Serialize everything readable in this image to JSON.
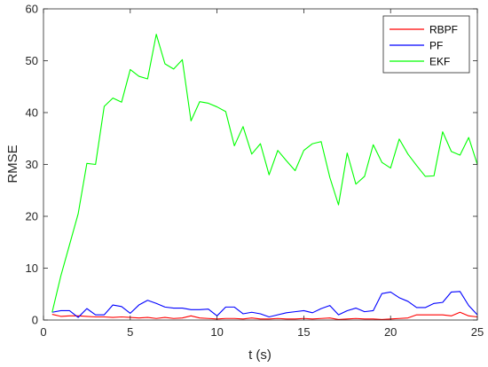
{
  "chart_data": {
    "type": "line",
    "xlabel": "t (s)",
    "ylabel": "RMSE",
    "xlim": [
      0,
      25
    ],
    "ylim": [
      0,
      60
    ],
    "xticks": [
      0,
      5,
      10,
      15,
      20,
      25
    ],
    "yticks": [
      0,
      10,
      20,
      30,
      40,
      50,
      60
    ],
    "grid": false,
    "legend_position": "top-right",
    "x": [
      0.5,
      1,
      1.5,
      2,
      2.5,
      3,
      3.5,
      4,
      4.5,
      5,
      5.5,
      6,
      6.5,
      7,
      7.5,
      8,
      8.5,
      9,
      9.5,
      10,
      10.5,
      11,
      11.5,
      12,
      12.5,
      13,
      13.5,
      14,
      14.5,
      15,
      15.5,
      16,
      16.5,
      17,
      17.5,
      18,
      18.5,
      19,
      19.5,
      20,
      20.5,
      21,
      21.5,
      22,
      22.5,
      23,
      23.5,
      24,
      24.5,
      25
    ],
    "series": [
      {
        "name": "RBPF",
        "color": "#ff0000",
        "values": [
          1.1,
          0.7,
          0.8,
          0.8,
          0.7,
          0.6,
          0.6,
          0.5,
          0.6,
          0.5,
          0.4,
          0.5,
          0.3,
          0.5,
          0.3,
          0.4,
          0.8,
          0.4,
          0.3,
          0.2,
          0.3,
          0.3,
          0.2,
          0.4,
          0.2,
          0.2,
          0.3,
          0.2,
          0.2,
          0.3,
          0.2,
          0.3,
          0.4,
          0.1,
          0.2,
          0.3,
          0.2,
          0.2,
          0.1,
          0.2,
          0.3,
          0.4,
          1.0,
          1.0,
          1.0,
          1.0,
          0.8,
          1.5,
          0.8,
          0.6
        ]
      },
      {
        "name": "PF",
        "color": "#0000ff",
        "values": [
          1.5,
          1.8,
          1.8,
          0.5,
          2.2,
          1.0,
          1.0,
          2.9,
          2.6,
          1.3,
          2.9,
          3.8,
          3.2,
          2.5,
          2.3,
          2.3,
          2.0,
          2.0,
          2.1,
          0.8,
          2.5,
          2.5,
          1.2,
          1.5,
          1.2,
          0.6,
          1.0,
          1.4,
          1.6,
          1.8,
          1.4,
          2.2,
          2.8,
          1.0,
          1.8,
          2.3,
          1.6,
          1.8,
          5.1,
          5.4,
          4.3,
          3.6,
          2.4,
          2.4,
          3.2,
          3.4,
          5.4,
          5.5,
          2.8,
          1.0
        ]
      },
      {
        "name": "EKF",
        "color": "#00ff00",
        "values": [
          1.5,
          8.5,
          14.5,
          20.5,
          30.2,
          30.0,
          41.2,
          42.8,
          42.0,
          48.3,
          47.0,
          46.5,
          55.1,
          49.4,
          48.4,
          50.2,
          38.4,
          42.1,
          41.8,
          41.1,
          40.2,
          33.6,
          37.3,
          32.0,
          34.0,
          28.0,
          32.7,
          30.7,
          28.8,
          32.7,
          34.0,
          34.4,
          27.5,
          22.2,
          32.2,
          26.2,
          27.7,
          33.8,
          30.4,
          29.3,
          34.9,
          32.0,
          29.8,
          27.7,
          27.8,
          36.3,
          32.5,
          31.8,
          35.2,
          30.0
        ]
      }
    ]
  }
}
